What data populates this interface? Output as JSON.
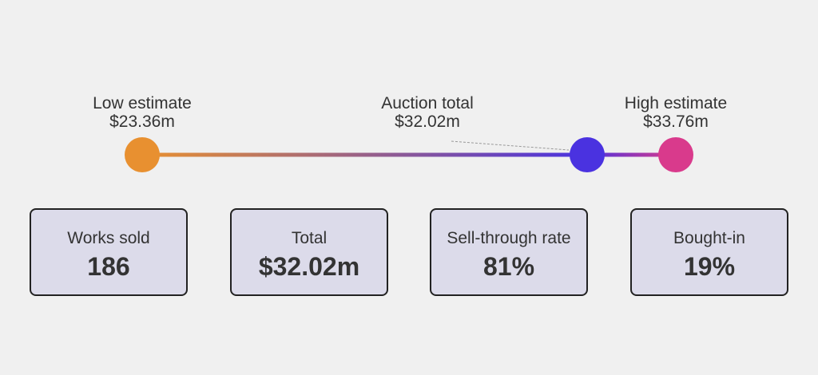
{
  "range": {
    "markers": [
      {
        "id": "low",
        "label": "Low estimate",
        "value": "$23.36m",
        "amount_m": 23.36,
        "color": "#e89030"
      },
      {
        "id": "auction",
        "label": "Auction total",
        "value": "$32.02m",
        "amount_m": 32.02,
        "color": "#4a32e0"
      },
      {
        "id": "high",
        "label": "High estimate",
        "value": "$33.76m",
        "amount_m": 33.76,
        "color": "#d93a8c"
      }
    ],
    "colors": {
      "gradient_start": "#e89030",
      "gradient_mid": "#4a32e0",
      "gradient_end": "#d93a8c",
      "leader_line": "#999999"
    }
  },
  "stats": [
    {
      "label": "Works sold",
      "value": "186"
    },
    {
      "label": "Total",
      "value": "$32.02m"
    },
    {
      "label": "Sell-through rate",
      "value": "81%"
    },
    {
      "label": "Bought-in",
      "value": "19%"
    }
  ],
  "colors": {
    "background": "#f0f0f0",
    "card_fill": "#dcdbea",
    "card_border": "#222222",
    "text": "#333333"
  }
}
